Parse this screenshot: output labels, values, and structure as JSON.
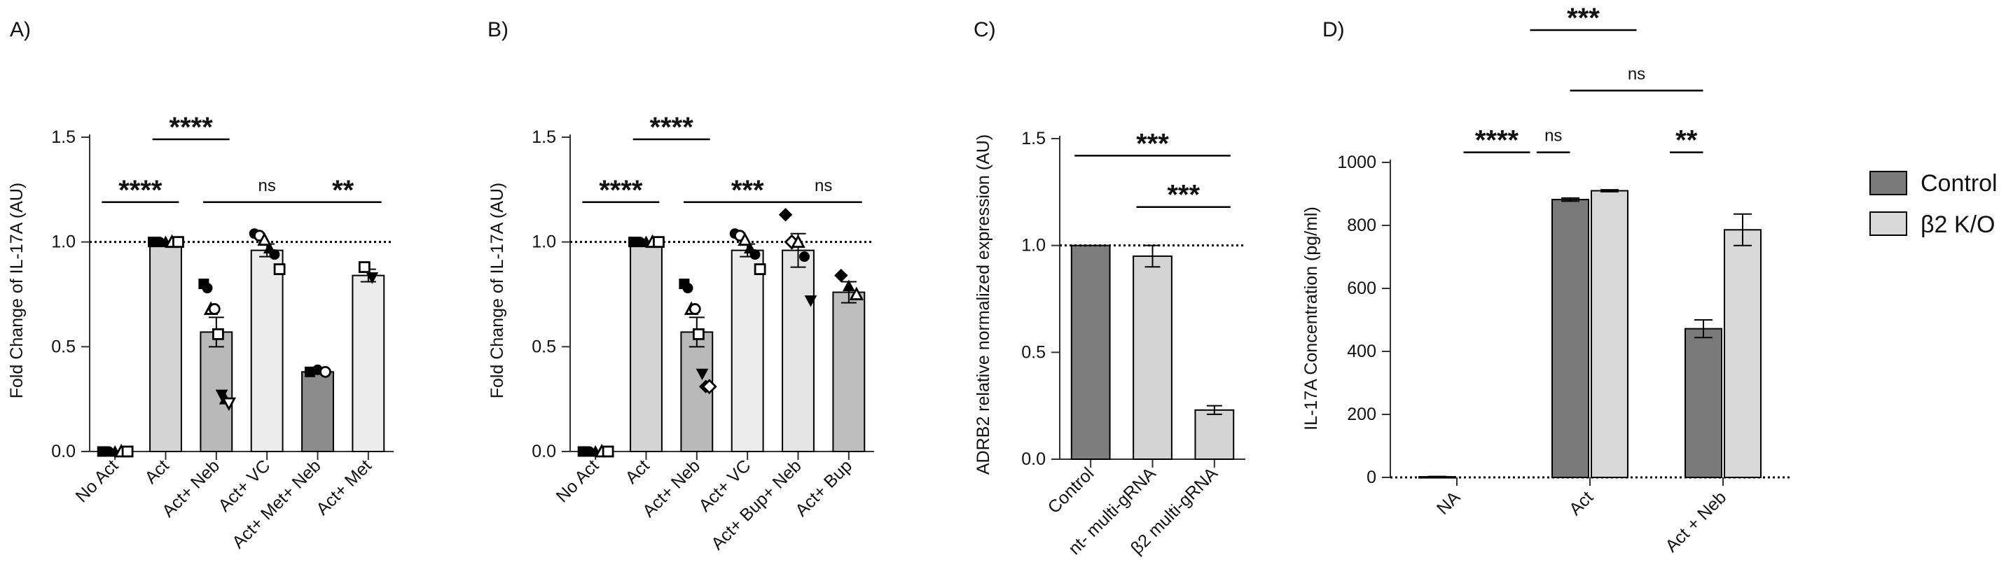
{
  "chart_data": [
    {
      "panel": "A)",
      "type": "bar",
      "ylabel": "Fold Change of IL-17A (AU)",
      "ylim": [
        0,
        1.5
      ],
      "yticks": [
        0.0,
        0.5,
        1.0,
        1.5
      ],
      "tick_labels": [
        "0.0",
        "0.5",
        "1.0",
        "1.5"
      ],
      "reference_line": 1.0,
      "categories": [
        "No Act",
        "Act",
        "Act+ Neb",
        "Act+ VC",
        "Act+ Met+ Neb",
        "Act+ Met"
      ],
      "values": [
        0.0,
        1.0,
        0.57,
        0.96,
        0.38,
        0.84
      ],
      "errors": [
        0.0,
        0.0,
        0.07,
        0.03,
        0.01,
        0.03
      ],
      "bar_colors": [
        "#d4d4d4",
        "#d4d4d4",
        "#b9b9b9",
        "#ececec",
        "#8c8c8c",
        "#ececec"
      ],
      "points": [
        [
          [
            0.0,
            "square"
          ],
          [
            0.0,
            "circle"
          ],
          [
            0.0,
            "triangle"
          ],
          [
            0.0,
            "triangle-open"
          ],
          [
            0.0,
            "square-open"
          ]
        ],
        [
          [
            1.0,
            "square"
          ],
          [
            1.0,
            "circle"
          ],
          [
            1.0,
            "triangle"
          ],
          [
            1.0,
            "triangle-open"
          ],
          [
            1.0,
            "square-open"
          ]
        ],
        [
          [
            0.8,
            "square"
          ],
          [
            0.78,
            "circle"
          ],
          [
            0.68,
            "triangle-open"
          ],
          [
            0.68,
            "circle-open"
          ],
          [
            0.56,
            "square-open"
          ],
          [
            0.27,
            "triangle-down"
          ],
          [
            0.25,
            "triangle"
          ],
          [
            0.23,
            "triangle-down-open"
          ]
        ],
        [
          [
            1.04,
            "circle"
          ],
          [
            1.03,
            "circle-open"
          ],
          [
            1.01,
            "triangle-open"
          ],
          [
            0.97,
            "triangle"
          ],
          [
            0.94,
            "circle"
          ],
          [
            0.87,
            "square-open"
          ]
        ],
        [
          [
            0.38,
            "square"
          ],
          [
            0.39,
            "circle"
          ],
          [
            0.38,
            "circle-open"
          ]
        ],
        [
          [
            0.88,
            "square-open"
          ],
          [
            0.83,
            "triangle-down"
          ]
        ]
      ],
      "comparisons": [
        {
          "from": 0,
          "to": 1,
          "label": "****",
          "y": 1.19
        },
        {
          "from": 1,
          "to": 2,
          "label": "****",
          "y": 1.49
        },
        {
          "from": 2,
          "to": 4,
          "label": "ns",
          "y": 1.19
        },
        {
          "from": 4,
          "to": 5,
          "label": "**",
          "y": 1.19
        }
      ]
    },
    {
      "panel": "B)",
      "type": "bar",
      "ylabel": "Fold Change of IL-17A (AU)",
      "ylim": [
        0,
        1.5
      ],
      "yticks": [
        0.0,
        0.5,
        1.0,
        1.5
      ],
      "tick_labels": [
        "0.0",
        "0.5",
        "1.0",
        "1.5"
      ],
      "reference_line": 1.0,
      "categories": [
        "No Act",
        "Act",
        "Act+ Neb",
        "Act+ VC",
        "Act+ Bup+ Neb",
        "Act+ Bup"
      ],
      "values": [
        0.0,
        1.0,
        0.57,
        0.96,
        0.96,
        0.76
      ],
      "errors": [
        0.0,
        0.0,
        0.07,
        0.03,
        0.08,
        0.05
      ],
      "bar_colors": [
        "#d4d4d4",
        "#d4d4d4",
        "#b9b9b9",
        "#ececec",
        "#e4e4e4",
        "#bdbdbd"
      ],
      "points": [
        [
          [
            0.0,
            "square"
          ],
          [
            0.0,
            "circle"
          ],
          [
            0.0,
            "triangle"
          ],
          [
            0.0,
            "triangle-open"
          ],
          [
            0.0,
            "square-open"
          ]
        ],
        [
          [
            1.0,
            "square"
          ],
          [
            1.0,
            "circle"
          ],
          [
            1.0,
            "triangle"
          ],
          [
            1.0,
            "triangle-open"
          ],
          [
            1.0,
            "square-open"
          ]
        ],
        [
          [
            0.8,
            "square"
          ],
          [
            0.78,
            "circle"
          ],
          [
            0.68,
            "triangle-open"
          ],
          [
            0.68,
            "circle-open"
          ],
          [
            0.56,
            "square-open"
          ],
          [
            0.37,
            "triangle-down"
          ],
          [
            0.31,
            "diamond"
          ],
          [
            0.31,
            "diamond-open"
          ]
        ],
        [
          [
            1.04,
            "circle"
          ],
          [
            1.03,
            "circle-open"
          ],
          [
            1.01,
            "triangle-open"
          ],
          [
            0.97,
            "triangle"
          ],
          [
            0.94,
            "circle"
          ],
          [
            0.87,
            "square-open"
          ]
        ],
        [
          [
            1.13,
            "diamond"
          ],
          [
            1.0,
            "diamond-open"
          ],
          [
            1.0,
            "triangle-open"
          ],
          [
            0.93,
            "circle"
          ],
          [
            0.72,
            "triangle-down"
          ]
        ],
        [
          [
            0.84,
            "diamond"
          ],
          [
            0.79,
            "triangle"
          ],
          [
            0.75,
            "triangle-open"
          ]
        ]
      ],
      "comparisons": [
        {
          "from": 0,
          "to": 1,
          "label": "****",
          "y": 1.19
        },
        {
          "from": 1,
          "to": 2,
          "label": "****",
          "y": 1.49
        },
        {
          "from": 2,
          "to": 4,
          "label": "***",
          "y": 1.19
        },
        {
          "from": 4,
          "to": 5,
          "label": "ns",
          "y": 1.19
        }
      ]
    },
    {
      "panel": "C)",
      "type": "bar",
      "ylabel": "ADRB2 relative normalized expression (AU)",
      "ylim": [
        0,
        1.5
      ],
      "yticks": [
        0.0,
        0.5,
        1.0,
        1.5
      ],
      "tick_labels": [
        "0.0",
        "0.5",
        "1.0",
        "1.5"
      ],
      "reference_line": 1.0,
      "categories": [
        "Control",
        "nt- multi-gRNA",
        "β2 multi-gRNA"
      ],
      "values": [
        1.0,
        0.95,
        0.23
      ],
      "errors": [
        0.0,
        0.05,
        0.02
      ],
      "bar_colors": [
        "#7d7d7d",
        "#d4d4d4",
        "#d4d4d4"
      ],
      "points": [],
      "comparisons": [
        {
          "from": 0,
          "to": 2,
          "label": "***",
          "y": 1.42
        },
        {
          "from": 1,
          "to": 2,
          "label": "***",
          "y": 1.18
        }
      ]
    },
    {
      "panel": "D)",
      "type": "bar",
      "ylabel": "IL-17A Concentration (pg/ml)",
      "ylim": [
        0,
        1000
      ],
      "yticks": [
        0,
        200,
        400,
        600,
        800,
        1000
      ],
      "tick_labels": [
        "0",
        "200",
        "400",
        "600",
        "800",
        "1000"
      ],
      "reference_line": 0,
      "categories": [
        "NA",
        "Act",
        "Act + Neb"
      ],
      "series": [
        {
          "name": "Control",
          "color": "#7a7a7a",
          "values": [
            2,
            882,
            472
          ],
          "errors": [
            1,
            5,
            28
          ]
        },
        {
          "name": "β2 K/O",
          "color": "#d8d8d8",
          "values": [
            0,
            910,
            786
          ],
          "errors": [
            0,
            3,
            50
          ]
        }
      ],
      "legend": {
        "position": "right",
        "entries": [
          "Control",
          "β2 K/O"
        ]
      },
      "comparisons": [
        {
          "label": "****",
          "x0": 0.55,
          "x1": 1.05,
          "y": 1032
        },
        {
          "label": "ns",
          "x0": 1.1,
          "x1": 1.35,
          "y": 1032
        },
        {
          "label": "**",
          "x0": 2.1,
          "x1": 2.35,
          "y": 1032
        },
        {
          "label": "ns",
          "x0": 1.35,
          "x1": 2.35,
          "y": 1228
        },
        {
          "label": "***",
          "x0": 1.05,
          "x1": 1.85,
          "y": 1420
        }
      ]
    }
  ]
}
